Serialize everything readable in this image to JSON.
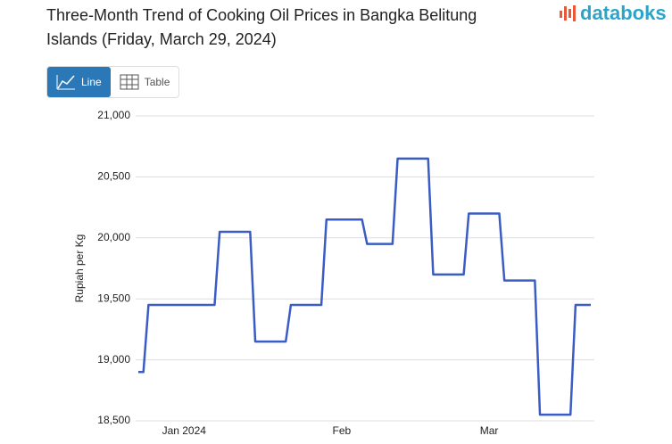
{
  "brand": "databoks",
  "controls": {
    "line": "Line",
    "table": "Table"
  },
  "chart_data": {
    "type": "line",
    "title": "Three-Month Trend of Cooking Oil Prices in Bangka Belitung Islands (Friday, March 29, 2024)",
    "y_label": "Rupiah per Kg",
    "color": "#3b5cc4",
    "grid": true,
    "ylim": [
      18500,
      21000
    ],
    "yticks": [
      {
        "value": 18500,
        "label": "18,500"
      },
      {
        "value": 19000,
        "label": "19,000"
      },
      {
        "value": 19500,
        "label": "19,500"
      },
      {
        "value": 20000,
        "label": "20,000"
      },
      {
        "value": 20500,
        "label": "20,500"
      },
      {
        "value": 21000,
        "label": "21,000"
      }
    ],
    "categories": [
      null,
      null,
      null,
      null,
      null,
      null,
      null,
      null,
      null,
      "Jan 2024",
      null,
      null,
      null,
      null,
      null,
      null,
      null,
      null,
      null,
      null,
      null,
      null,
      null,
      null,
      null,
      null,
      null,
      null,
      null,
      null,
      null,
      null,
      null,
      null,
      null,
      null,
      null,
      null,
      null,
      null,
      "Feb",
      null,
      null,
      null,
      null,
      null,
      null,
      null,
      null,
      null,
      null,
      null,
      null,
      null,
      null,
      null,
      null,
      null,
      null,
      null,
      null,
      null,
      null,
      null,
      null,
      null,
      null,
      null,
      null,
      "Mar",
      null,
      null,
      null,
      null,
      null,
      null,
      null,
      null,
      null,
      null,
      null,
      null,
      null,
      null,
      null,
      null,
      null,
      null,
      null,
      null
    ],
    "values": [
      18900,
      18900,
      19450,
      19450,
      19450,
      19450,
      19450,
      19450,
      19450,
      19450,
      19450,
      19450,
      19450,
      19450,
      19450,
      19450,
      20050,
      20050,
      20050,
      20050,
      20050,
      20050,
      20050,
      19150,
      19150,
      19150,
      19150,
      19150,
      19150,
      19150,
      19450,
      19450,
      19450,
      19450,
      19450,
      19450,
      19450,
      20150,
      20150,
      20150,
      20150,
      20150,
      20150,
      20150,
      20150,
      19950,
      19950,
      19950,
      19950,
      19950,
      19950,
      20650,
      20650,
      20650,
      20650,
      20650,
      20650,
      20650,
      19700,
      19700,
      19700,
      19700,
      19700,
      19700,
      19700,
      20200,
      20200,
      20200,
      20200,
      20200,
      20200,
      20200,
      19650,
      19650,
      19650,
      19650,
      19650,
      19650,
      19650,
      18550,
      18550,
      18550,
      18550,
      18550,
      18550,
      18550,
      19450,
      19450,
      19450,
      19450
    ]
  }
}
